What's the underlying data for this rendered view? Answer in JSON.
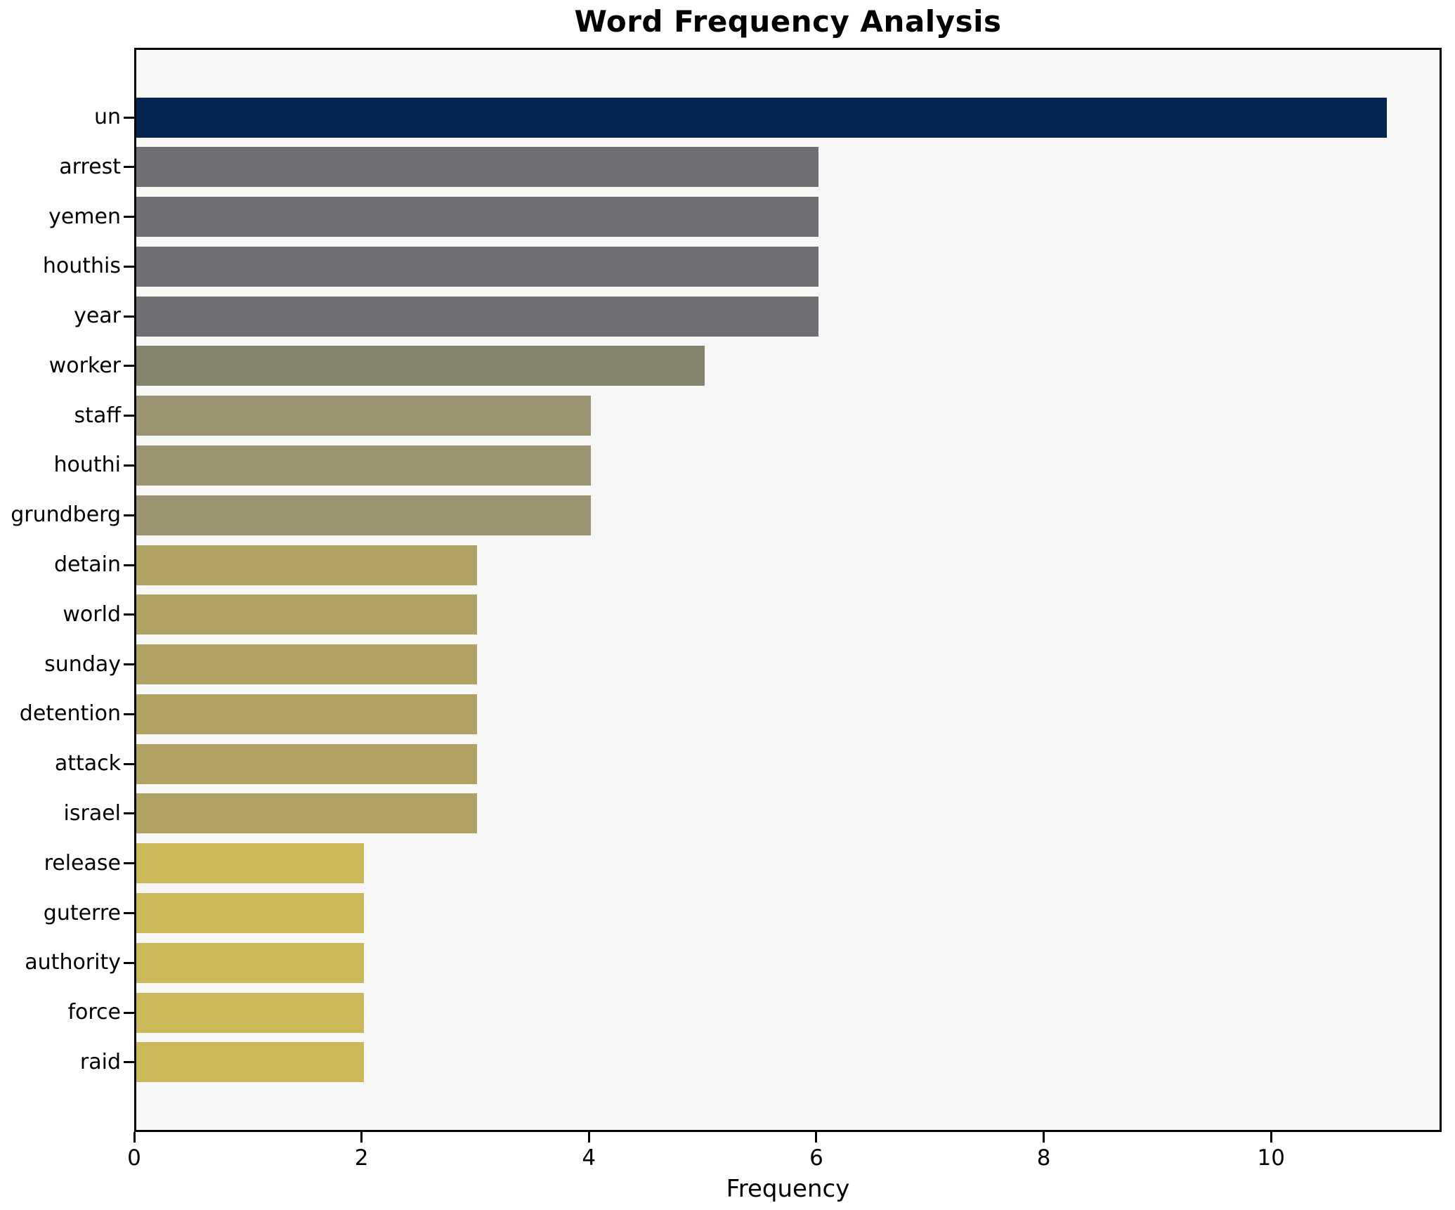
{
  "figure": {
    "background": "#ffffff"
  },
  "chart_data": {
    "type": "bar",
    "orientation": "horizontal",
    "title": "Word Frequency Analysis",
    "xlabel": "Frequency",
    "ylabel": "",
    "categories": [
      "un",
      "arrest",
      "yemen",
      "houthis",
      "year",
      "worker",
      "staff",
      "houthi",
      "grundberg",
      "detain",
      "world",
      "sunday",
      "detention",
      "attack",
      "israel",
      "release",
      "guterre",
      "authority",
      "force",
      "raid"
    ],
    "values": [
      11,
      6,
      6,
      6,
      6,
      5,
      4,
      4,
      4,
      3,
      3,
      3,
      3,
      3,
      3,
      2,
      2,
      2,
      2,
      2
    ],
    "bar_colors": [
      "#04254f",
      "#706f74",
      "#706f74",
      "#706f74",
      "#706f74",
      "#85836e",
      "#9c9371",
      "#9c9371",
      "#9c9371",
      "#b0a263",
      "#b0a263",
      "#b0a263",
      "#b0a263",
      "#b0a263",
      "#b0a263",
      "#ccb85b",
      "#ccb85b",
      "#ccb85b",
      "#ccb85b",
      "#ccb85b"
    ],
    "xticks": [
      0,
      2,
      4,
      6,
      8,
      10
    ],
    "xlim": [
      0,
      11.5
    ],
    "grid": false,
    "legend": "none",
    "plot_background": "#f7f7f5",
    "axis_color": "#000000",
    "text_color": "#000000"
  }
}
